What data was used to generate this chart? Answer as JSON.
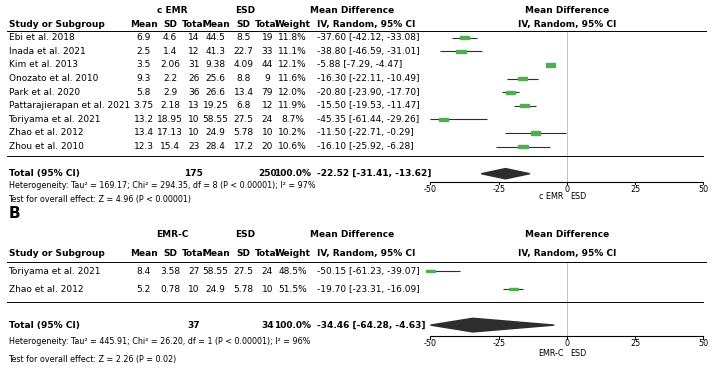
{
  "panel_A": {
    "title": "A",
    "group1_label": "c EMR",
    "group2_label": "ESD",
    "studies": [
      {
        "name": "Ebi et al. 2018",
        "m1": 6.9,
        "sd1": 4.6,
        "n1": 14,
        "m2": 44.5,
        "sd2": 8.5,
        "n2": 19,
        "weight": "11.8%",
        "md": -37.6,
        "ci_lo": -42.12,
        "ci_hi": -33.08
      },
      {
        "name": "Inada et al. 2021",
        "m1": 2.5,
        "sd1": 1.4,
        "n1": 12,
        "m2": 41.3,
        "sd2": 22.7,
        "n2": 33,
        "weight": "11.1%",
        "md": -38.8,
        "ci_lo": -46.59,
        "ci_hi": -31.01
      },
      {
        "name": "Kim et al. 2013",
        "m1": 3.5,
        "sd1": 2.06,
        "n1": 31,
        "m2": 9.38,
        "sd2": 4.09,
        "n2": 44,
        "weight": "12.1%",
        "md": -5.88,
        "ci_lo": -7.29,
        "ci_hi": -4.47
      },
      {
        "name": "Onozato et al. 2010",
        "m1": 9.3,
        "sd1": 2.2,
        "n1": 26,
        "m2": 25.6,
        "sd2": 8.8,
        "n2": 9,
        "weight": "11.6%",
        "md": -16.3,
        "ci_lo": -22.11,
        "ci_hi": -10.49
      },
      {
        "name": "Park et al. 2020",
        "m1": 5.8,
        "sd1": 2.9,
        "n1": 36,
        "m2": 26.6,
        "sd2": 13.4,
        "n2": 79,
        "weight": "12.0%",
        "md": -20.8,
        "ci_lo": -23.9,
        "ci_hi": -17.7
      },
      {
        "name": "Pattarajierapan et al. 2021",
        "m1": 3.75,
        "sd1": 2.18,
        "n1": 13,
        "m2": 19.25,
        "sd2": 6.8,
        "n2": 12,
        "weight": "11.9%",
        "md": -15.5,
        "ci_lo": -19.53,
        "ci_hi": -11.47
      },
      {
        "name": "Toriyama et al. 2021",
        "m1": 13.2,
        "sd1": 18.95,
        "n1": 10,
        "m2": 58.55,
        "sd2": 27.5,
        "n2": 24,
        "weight": "8.7%",
        "md": -45.35,
        "ci_lo": -61.44,
        "ci_hi": -29.26
      },
      {
        "name": "Zhao et al. 2012",
        "m1": 13.4,
        "sd1": 17.13,
        "n1": 10,
        "m2": 24.9,
        "sd2": 5.78,
        "n2": 10,
        "weight": "10.2%",
        "md": -11.5,
        "ci_lo": -22.71,
        "ci_hi": -0.29
      },
      {
        "name": "Zhou et al. 2010",
        "m1": 12.3,
        "sd1": 15.4,
        "n1": 23,
        "m2": 28.4,
        "sd2": 17.2,
        "n2": 20,
        "weight": "10.6%",
        "md": -16.1,
        "ci_lo": -25.92,
        "ci_hi": -6.28
      }
    ],
    "total_n1": 175,
    "total_n2": 250,
    "total_weight": "100.0%",
    "total_md": -22.52,
    "total_ci_lo": -31.41,
    "total_ci_hi": -13.62,
    "total_ci_str": "-22.52 [-31.41, -13.62]",
    "heterogeneity": "Heterogeneity: Tau² = 169.17; Chi² = 294.35, df = 8 (P < 0.00001); I² = 97%",
    "overall_effect": "Test for overall effect: Z = 4.96 (P < 0.00001)",
    "xmin": -50,
    "xmax": 50,
    "xticks": [
      -50,
      -25,
      0,
      25,
      50
    ],
    "xlabel_left": "c EMR",
    "xlabel_right": "ESD"
  },
  "panel_B": {
    "title": "B",
    "group1_label": "EMR-C",
    "group2_label": "ESD",
    "studies": [
      {
        "name": "Toriyama et al. 2021",
        "m1": 8.4,
        "sd1": 3.58,
        "n1": 27,
        "m2": 58.55,
        "sd2": 27.5,
        "n2": 24,
        "weight": "48.5%",
        "md": -50.15,
        "ci_lo": -61.23,
        "ci_hi": -39.07
      },
      {
        "name": "Zhao et al. 2012",
        "m1": 5.2,
        "sd1": 0.78,
        "n1": 10,
        "m2": 24.9,
        "sd2": 5.78,
        "n2": 10,
        "weight": "51.5%",
        "md": -19.7,
        "ci_lo": -23.31,
        "ci_hi": -16.09
      }
    ],
    "total_n1": 37,
    "total_n2": 34,
    "total_weight": "100.0%",
    "total_md": -34.46,
    "total_ci_lo": -64.28,
    "total_ci_hi": -4.63,
    "total_ci_str": "-34.46 [-64.28, -4.63]",
    "heterogeneity": "Heterogeneity: Tau² = 445.91; Chi² = 26.20, df = 1 (P < 0.00001); I² = 96%",
    "overall_effect": "Test for overall effect: Z = 2.26 (P = 0.02)",
    "xmin": -50,
    "xmax": 50,
    "xticks": [
      -50,
      -25,
      0,
      25,
      50
    ],
    "xlabel_left": "EMR-C",
    "xlabel_right": "ESD"
  },
  "diamond_color": "#2d2d2d",
  "ci_line_color": "#2d2d2d",
  "square_color": "#4CAF50",
  "bg_color": "#ffffff",
  "text_color": "#000000",
  "line_color": "#000000",
  "col_header_fontsize": 6.5,
  "study_fontsize": 6.5,
  "note_fontsize": 5.8
}
